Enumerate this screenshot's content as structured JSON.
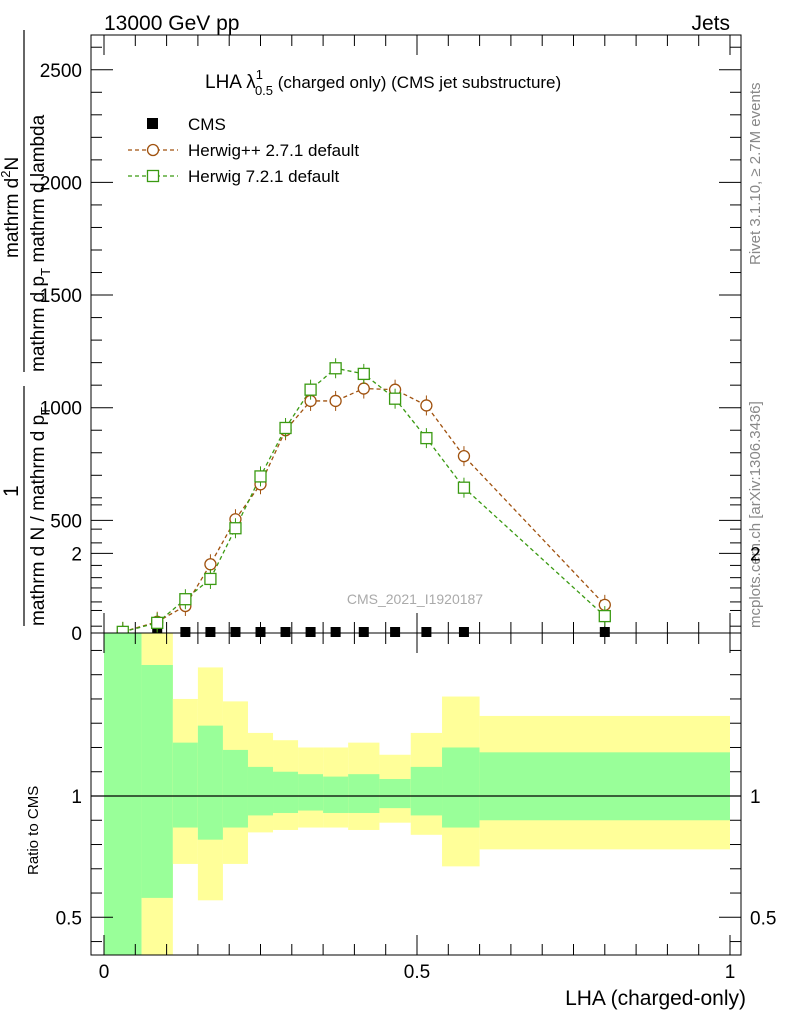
{
  "header": {
    "left": "13000 GeV pp",
    "right": "Jets"
  },
  "side_labels": {
    "rivet": "Rivet 3.1.10, ≥ 2.7M events",
    "mcplots": "mcplots.cern.ch [arXiv:1306.3436]"
  },
  "watermark": "CMS_2021_I1920187",
  "main_title": {
    "prefix": "LHA λ",
    "superscript": "1",
    "subscript": "0.5",
    "suffix": " (charged only) (CMS jet substructure)"
  },
  "ylabel_main": {
    "one": "1",
    "denominator": "mathrm d N / mathrm d p",
    "denominator_sub": "T",
    "numerator_1": "mathrm d",
    "numerator_1_sup": "2",
    "numerator_1_tail": "N",
    "numerator_2": "mathrm d p",
    "numerator_2_sub": "T",
    "numerator_3": " mathrm d lambda"
  },
  "ylabel_ratio": "Ratio to CMS",
  "xlabel": "LHA (charged-only)",
  "colors": {
    "cms": "#000000",
    "herwigpp": "#a0520f",
    "herwig7": "#3a9a12",
    "band_inner": "#99ff99",
    "band_outer": "#ffff99"
  },
  "chart_data": [
    {
      "type": "line",
      "title": "LHA λ^1_0.5 (charged only) (CMS jet substructure)",
      "xlabel": "",
      "ylabel": "1 / mathrm d N / mathrm d p_T * mathrm d^2N / mathrm d p_T mathrm d lambda",
      "xlim": [
        0,
        1
      ],
      "ylim": [
        0,
        2650
      ],
      "yticks": [
        0,
        500,
        1000,
        1500,
        2000,
        2500
      ],
      "legend_position": "top-left",
      "series": [
        {
          "name": "CMS",
          "marker": "filled-square",
          "x": [
            0.03,
            0.085,
            0.13,
            0.17,
            0.21,
            0.25,
            0.29,
            0.33,
            0.37,
            0.415,
            0.465,
            0.515,
            0.575,
            0.8
          ],
          "values": [
            0,
            0,
            0,
            0,
            0,
            0,
            0,
            0,
            0,
            0,
            0,
            0,
            0,
            0
          ]
        },
        {
          "name": "Herwig++ 2.7.1 default",
          "marker": "open-circle",
          "x": [
            0.03,
            0.085,
            0.13,
            0.17,
            0.21,
            0.25,
            0.29,
            0.33,
            0.37,
            0.415,
            0.465,
            0.515,
            0.575,
            0.8
          ],
          "values": [
            5,
            50,
            120,
            305,
            505,
            660,
            900,
            1030,
            1030,
            1085,
            1080,
            1010,
            785,
            125
          ]
        },
        {
          "name": "Herwig 7.2.1 default",
          "marker": "open-square",
          "x": [
            0.03,
            0.085,
            0.13,
            0.17,
            0.21,
            0.25,
            0.29,
            0.33,
            0.37,
            0.415,
            0.465,
            0.515,
            0.575,
            0.8
          ],
          "values": [
            5,
            45,
            150,
            240,
            465,
            695,
            910,
            1080,
            1175,
            1150,
            1040,
            865,
            645,
            75
          ]
        }
      ]
    },
    {
      "type": "area",
      "xlabel": "LHA (charged-only)",
      "ylabel": "Ratio to CMS",
      "xlim": [
        0,
        1
      ],
      "ylim": [
        0.34,
        2.3
      ],
      "yticks": [
        0.5,
        1,
        2
      ],
      "xticks": [
        0,
        0.5,
        1
      ],
      "reference_line": 1,
      "bins": [
        {
          "x": [
            0.0,
            0.06
          ],
          "inner": [
            0.34,
            1.7
          ],
          "outer": [
            0.34,
            2.17
          ]
        },
        {
          "x": [
            0.06,
            0.11
          ],
          "inner": [
            0.58,
            1.54
          ],
          "outer": [
            0.34,
            1.89
          ]
        },
        {
          "x": [
            0.11,
            0.15
          ],
          "inner": [
            0.87,
            1.22
          ],
          "outer": [
            0.72,
            1.4
          ]
        },
        {
          "x": [
            0.15,
            0.19
          ],
          "inner": [
            0.82,
            1.29
          ],
          "outer": [
            0.57,
            1.53
          ]
        },
        {
          "x": [
            0.19,
            0.23
          ],
          "inner": [
            0.87,
            1.19
          ],
          "outer": [
            0.72,
            1.39
          ]
        },
        {
          "x": [
            0.23,
            0.27
          ],
          "inner": [
            0.92,
            1.12
          ],
          "outer": [
            0.85,
            1.26
          ]
        },
        {
          "x": [
            0.27,
            0.31
          ],
          "inner": [
            0.93,
            1.1
          ],
          "outer": [
            0.86,
            1.23
          ]
        },
        {
          "x": [
            0.31,
            0.35
          ],
          "inner": [
            0.94,
            1.09
          ],
          "outer": [
            0.87,
            1.2
          ]
        },
        {
          "x": [
            0.35,
            0.39
          ],
          "inner": [
            0.93,
            1.08
          ],
          "outer": [
            0.87,
            1.2
          ]
        },
        {
          "x": [
            0.39,
            0.44
          ],
          "inner": [
            0.93,
            1.09
          ],
          "outer": [
            0.86,
            1.22
          ]
        },
        {
          "x": [
            0.44,
            0.49
          ],
          "inner": [
            0.95,
            1.07
          ],
          "outer": [
            0.89,
            1.17
          ]
        },
        {
          "x": [
            0.49,
            0.54
          ],
          "inner": [
            0.92,
            1.12
          ],
          "outer": [
            0.84,
            1.26
          ]
        },
        {
          "x": [
            0.54,
            0.6
          ],
          "inner": [
            0.87,
            1.2
          ],
          "outer": [
            0.71,
            1.41
          ]
        },
        {
          "x": [
            0.6,
            1.0
          ],
          "inner": [
            0.9,
            1.18
          ],
          "outer": [
            0.78,
            1.33
          ]
        }
      ]
    }
  ]
}
